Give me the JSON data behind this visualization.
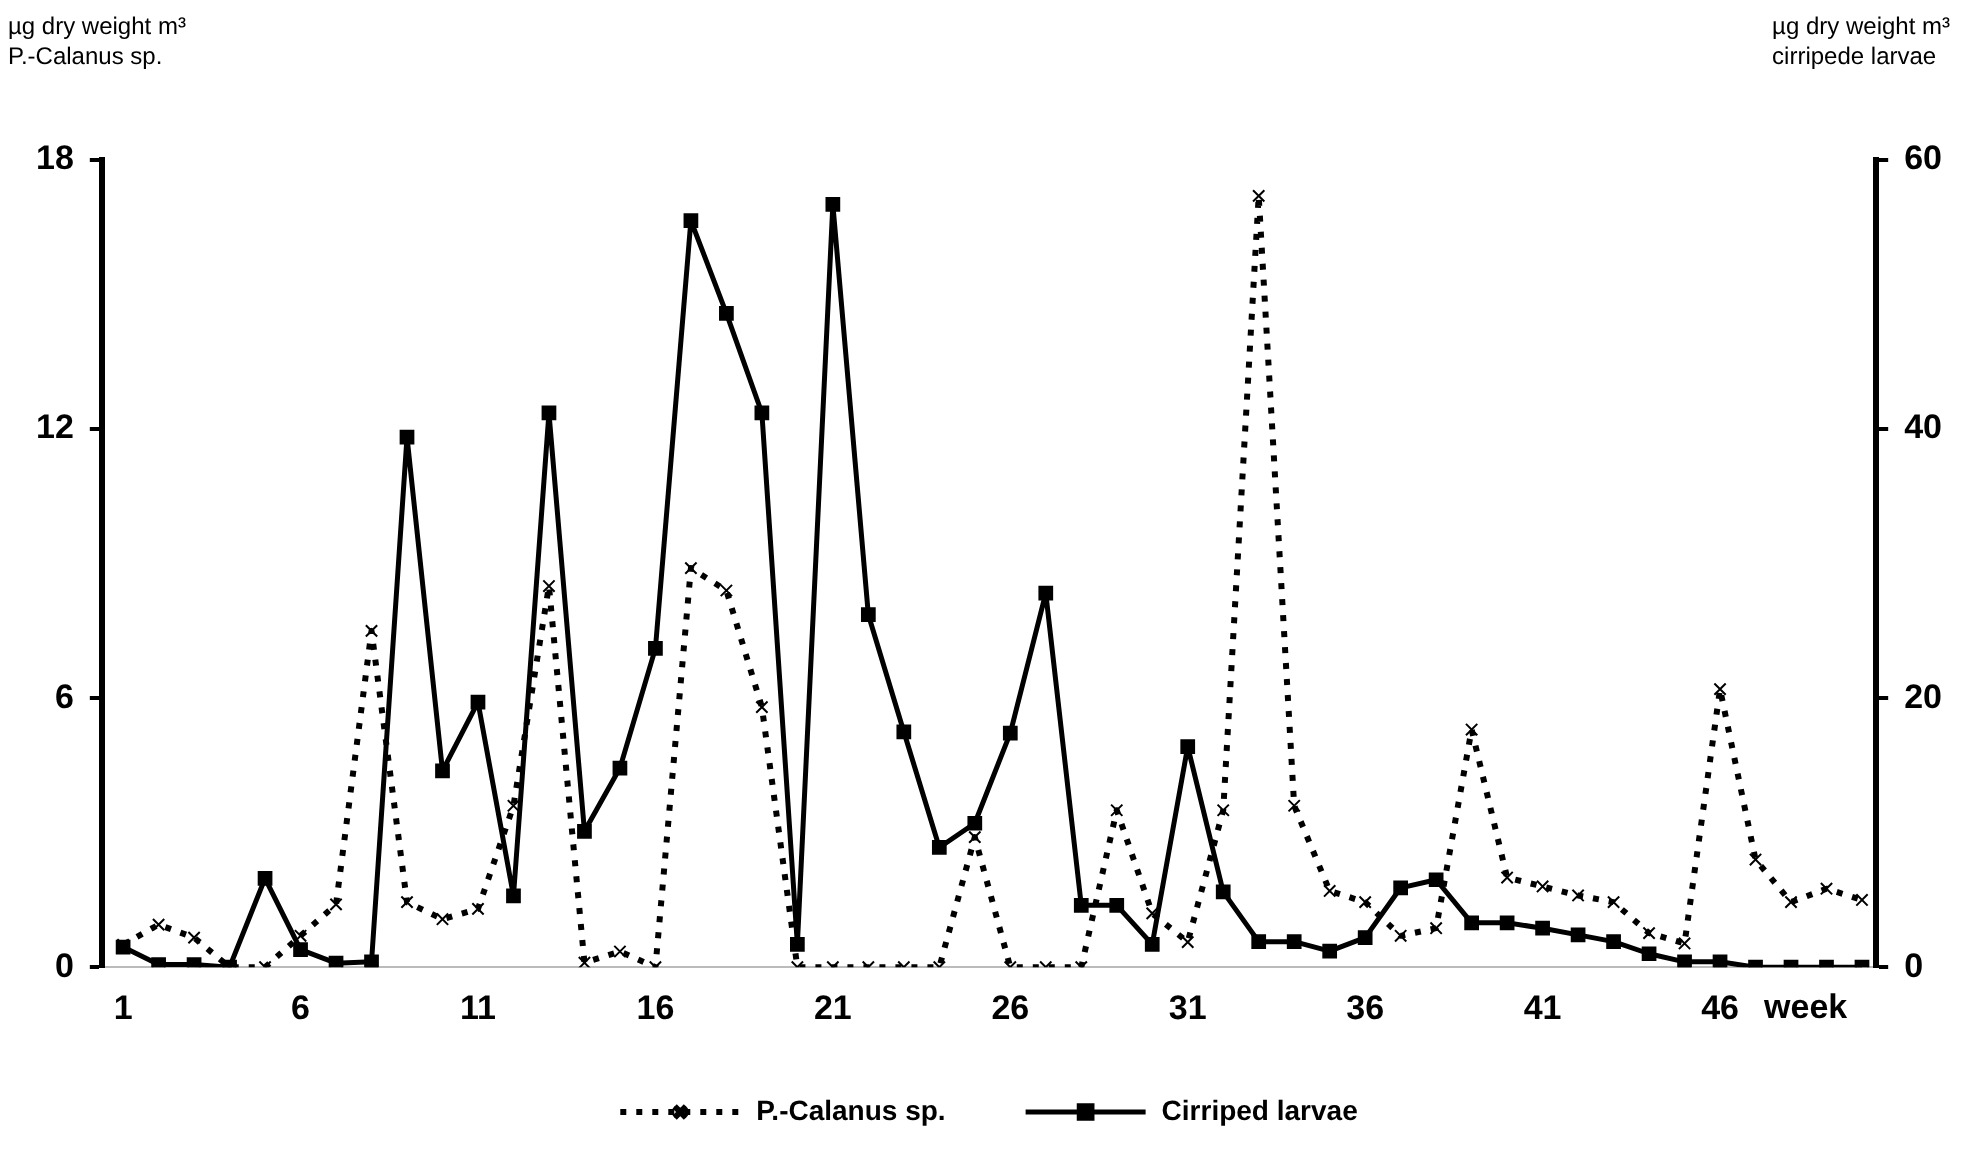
{
  "chart_data": {
    "type": "line",
    "ylabel": "µg dry weight m³\nP.-Calanus sp.",
    "y2label": "µg dry weight m³\ncirripede larvae",
    "xlabel": "week",
    "x": [
      1,
      2,
      3,
      4,
      5,
      6,
      7,
      8,
      9,
      10,
      11,
      12,
      13,
      14,
      15,
      16,
      17,
      18,
      19,
      20,
      21,
      22,
      23,
      24,
      25,
      26,
      27,
      28,
      29,
      30,
      31,
      32,
      33,
      34,
      35,
      36,
      37,
      38,
      39,
      40,
      41,
      42,
      43,
      44,
      45,
      46,
      47,
      48,
      49,
      50
    ],
    "series": [
      {
        "name": "P.-Calanus sp.",
        "color": "#000000",
        "marker": "cross",
        "line_style": "dotted",
        "values": [
          0.5,
          0.95,
          0.66,
          0,
          0,
          0.7,
          1.4,
          7.5,
          1.45,
          1.07,
          1.3,
          3.6,
          8.5,
          0.1,
          0.35,
          0,
          8.9,
          8.4,
          5.8,
          0,
          0,
          0,
          0,
          0,
          2.9,
          0,
          0,
          0,
          3.5,
          1.2,
          0.56,
          3.5,
          17.2,
          3.6,
          1.7,
          1.45,
          0.7,
          0.87,
          5.3,
          2.0,
          1.8,
          1.6,
          1.45,
          0.76,
          0.53,
          6.2,
          2.4,
          1.45,
          1.75,
          1.5
        ]
      },
      {
        "name": "Cirriped larvae",
        "color": "#000000",
        "marker": "square",
        "line_style": "solid",
        "axis": "y2",
        "values": [
          1.5,
          0.2,
          0.2,
          0,
          6.6,
          1.3,
          0.3,
          0.4,
          39.4,
          14.6,
          19.7,
          5.3,
          41.2,
          10.1,
          14.8,
          23.7,
          55.5,
          48.6,
          41.2,
          1.7,
          56.7,
          26.2,
          17.5,
          8.9,
          10.7,
          17.4,
          27.8,
          4.6,
          4.6,
          1.7,
          16.4,
          5.6,
          1.9,
          1.9,
          1.2,
          2.2,
          5.9,
          6.5,
          3.3,
          3.3,
          2.9,
          2.4,
          1.9,
          1.0,
          0.4,
          0.4,
          0,
          0,
          0,
          0
        ]
      }
    ],
    "xlim": [
      0.4,
      50.4
    ],
    "xticks": [
      1,
      6,
      11,
      16,
      21,
      26,
      31,
      36,
      41,
      46
    ],
    "ylim": [
      0,
      18
    ],
    "yticks": [
      0,
      6,
      12,
      18
    ],
    "y2lim": [
      0,
      60
    ],
    "y2ticks": [
      0,
      20,
      40,
      60
    ],
    "grid": false,
    "legend": "bottom"
  }
}
